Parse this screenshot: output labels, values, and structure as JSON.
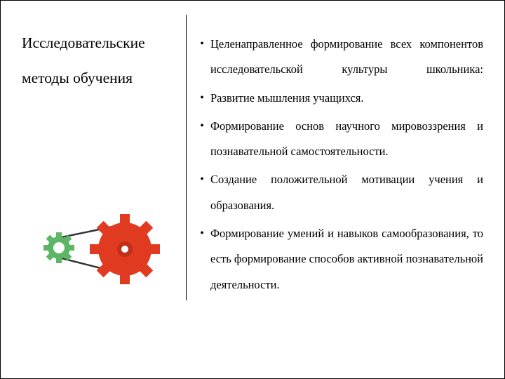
{
  "leftColumn": {
    "line1": "Исследовательские",
    "line2": "методы обучения"
  },
  "bullets": [
    {
      "text": "Целенаправленное формирование всех компонентов исследовательской культуры школьника:",
      "justify_last": true
    },
    {
      "text": "Развитие мышления учащихся.",
      "justify_last": false
    },
    {
      "text": "Формирование основ научного мировоззрения и познавательной самостоятельности.",
      "justify_last": false
    },
    {
      "text": "Создание положительной мотивации учения и образования.",
      "justify_last": false
    },
    {
      "text": "Формирование умений и навыков самообразования, то есть формирование способов активной познавательной деятельности.",
      "justify_last": false
    }
  ],
  "colors": {
    "main_gear": "#e03a21",
    "small_gear": "#5cb663",
    "small_gear_hole": "#ffffff",
    "belt": "#333333",
    "text": "#000000"
  }
}
